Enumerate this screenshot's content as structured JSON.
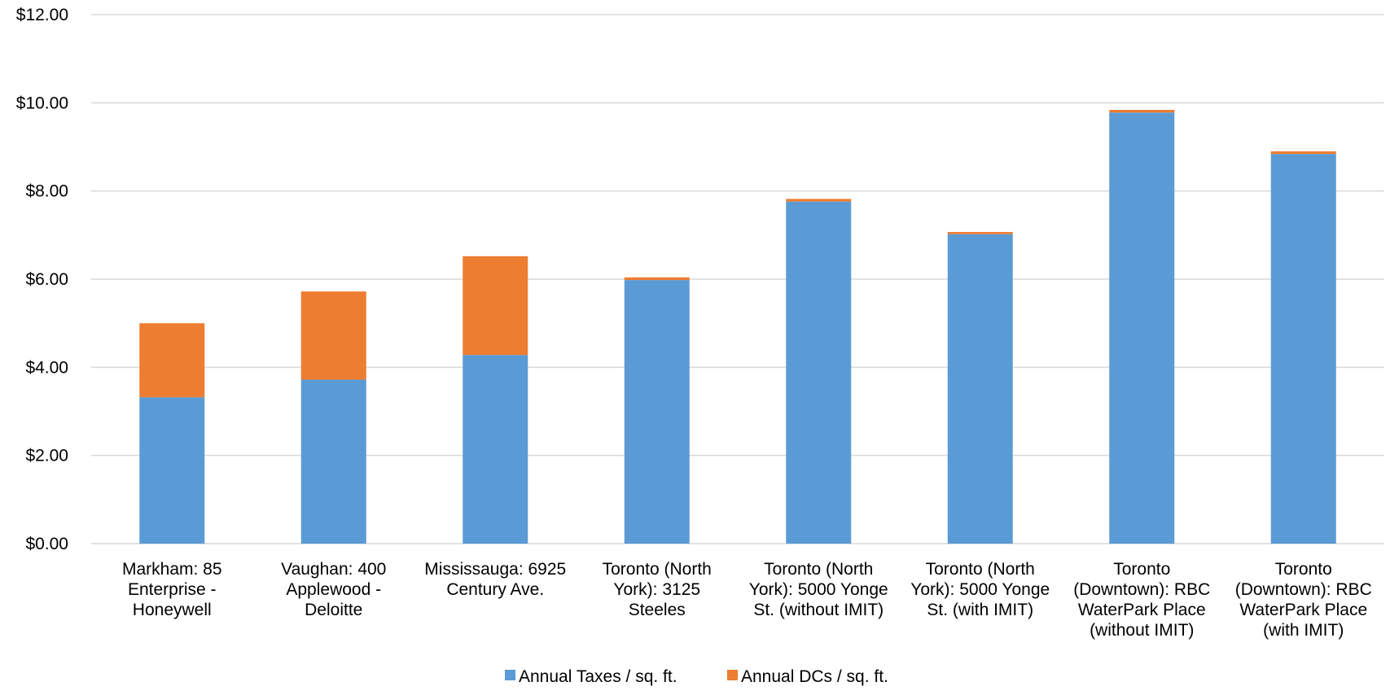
{
  "chart_data": {
    "type": "bar",
    "stacked": true,
    "title": "",
    "xlabel": "",
    "ylabel": "",
    "ylim": [
      0,
      12
    ],
    "yticks": [
      "$0.00",
      "$2.00",
      "$4.00",
      "$6.00",
      "$8.00",
      "$10.00",
      "$12.00"
    ],
    "ytick_values": [
      0,
      2,
      4,
      6,
      8,
      10,
      12
    ],
    "grid": true,
    "legend_position": "bottom",
    "categories": [
      [
        "Markham: 85",
        "Enterprise -",
        "Honeywell"
      ],
      [
        "Vaughan: 400",
        "Applewood -",
        "Deloitte"
      ],
      [
        "Mississauga: 6925",
        "Century Ave."
      ],
      [
        "Toronto (North",
        "York): 3125",
        "Steeles"
      ],
      [
        "Toronto (North",
        "York): 5000 Yonge",
        "St. (without IMIT)"
      ],
      [
        "Toronto (North",
        "York): 5000 Yonge",
        "St. (with IMIT)"
      ],
      [
        "Toronto",
        "(Downtown): RBC",
        "WaterPark Place",
        "(without IMIT)"
      ],
      [
        "Toronto",
        "(Downtown): RBC",
        "WaterPark Place",
        "(with IMIT)"
      ]
    ],
    "series": [
      {
        "name": "Annual Taxes / sq. ft.",
        "color": "#5b9bd5",
        "values": [
          3.32,
          3.72,
          4.28,
          5.98,
          7.76,
          7.02,
          9.78,
          8.84
        ]
      },
      {
        "name": "Annual DCs / sq. ft.",
        "color": "#ed7d31",
        "values": [
          1.68,
          2.0,
          2.24,
          0.06,
          0.06,
          0.05,
          0.06,
          0.06
        ]
      }
    ]
  }
}
